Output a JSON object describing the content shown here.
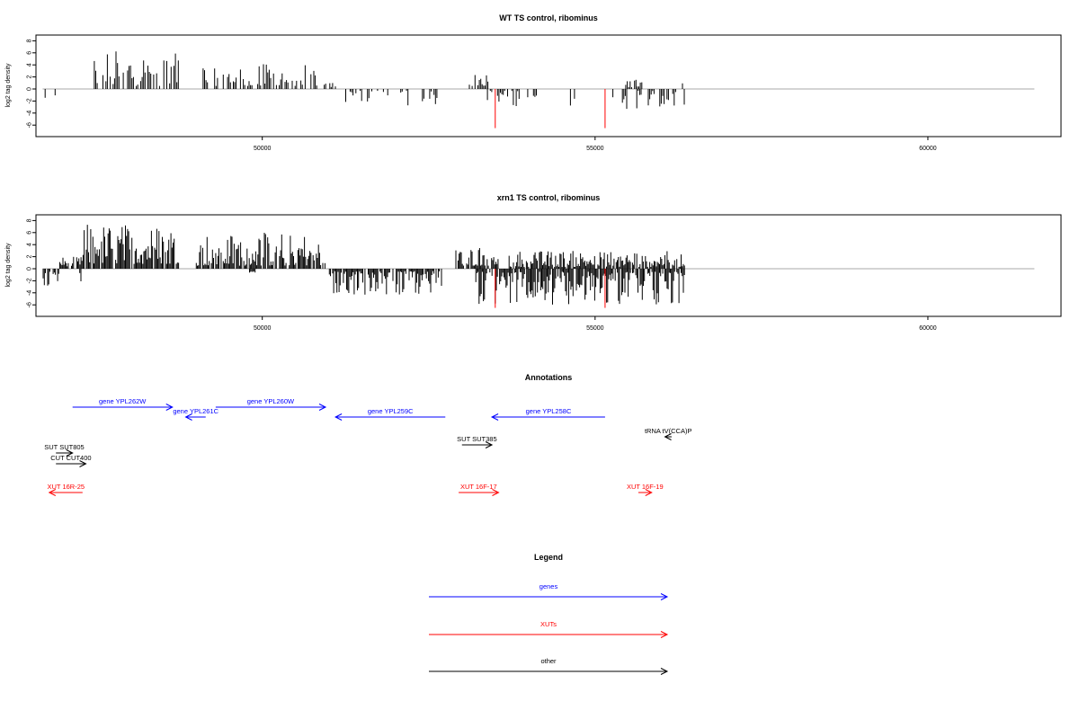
{
  "chart_data": [
    {
      "type": "bar",
      "title": "WT TS control, ribominus",
      "ylabel": "log2 tag density",
      "xlim": [
        46600,
        62000
      ],
      "ylim": [
        -7,
        8
      ],
      "xticks": [
        50000,
        55000,
        60000
      ],
      "yticks": [
        -6,
        -4,
        -2,
        0,
        2,
        4,
        6,
        8
      ],
      "baseline": 0,
      "bar_color": "#000000",
      "highlight_color": "#ff0000",
      "segments": [
        {
          "start": 46700,
          "end": 46750,
          "min": 0,
          "max": 0,
          "neg_min": -2.5,
          "neg_max": -0.5
        },
        {
          "start": 46750,
          "end": 46800,
          "min": 0,
          "max": 0,
          "neg_min": -0.3,
          "neg_max": 0
        },
        {
          "start": 46850,
          "end": 46900,
          "min": 0,
          "max": 0,
          "neg_min": -1.2,
          "neg_max": -0.4
        },
        {
          "start": 47400,
          "end": 48750,
          "min": 0.5,
          "max": 6.5,
          "neg_min": 0,
          "neg_max": 0
        },
        {
          "start": 49100,
          "end": 50850,
          "min": 0.5,
          "max": 4.2,
          "neg_min": 0,
          "neg_max": 0
        },
        {
          "start": 50900,
          "end": 51150,
          "min": 0.3,
          "max": 1.1,
          "neg_min": 0,
          "neg_max": 0
        },
        {
          "start": 51200,
          "end": 52700,
          "min": 0,
          "max": 0,
          "neg_min": -2.8,
          "neg_max": -0.3
        },
        {
          "start": 53100,
          "end": 53400,
          "min": 0.5,
          "max": 2.8,
          "neg_min": 0,
          "neg_max": 0
        },
        {
          "start": 53350,
          "end": 54150,
          "min": 0,
          "max": 0,
          "neg_min": -3.0,
          "neg_max": -0.3
        },
        {
          "start": 54600,
          "end": 54700,
          "min": 0,
          "max": 0,
          "neg_min": -3.4,
          "neg_max": -1.0
        },
        {
          "start": 55150,
          "end": 55300,
          "min": 0,
          "max": 0,
          "neg_min": -2.5,
          "neg_max": -0.5
        },
        {
          "start": 55450,
          "end": 55800,
          "min": 0.3,
          "max": 1.6,
          "neg_min": 0,
          "neg_max": 0
        },
        {
          "start": 55400,
          "end": 56350,
          "min": 0,
          "max": 0,
          "neg_min": -3.5,
          "neg_max": -0.3
        },
        {
          "start": 56300,
          "end": 56350,
          "min": 0.3,
          "max": 1.5,
          "neg_min": 0,
          "neg_max": 0
        }
      ],
      "highlights": [
        {
          "x": 53500,
          "y": -6.5
        },
        {
          "x": 55150,
          "y": -6.5
        }
      ]
    },
    {
      "type": "bar",
      "title": "xrn1 TS control, ribominus",
      "ylabel": "log2 tag density",
      "xlim": [
        46600,
        62000
      ],
      "ylim": [
        -7,
        8
      ],
      "xticks": [
        50000,
        55000,
        60000
      ],
      "yticks": [
        -6,
        -4,
        -2,
        0,
        2,
        4,
        6,
        8
      ],
      "baseline": 0,
      "bar_color": "#000000",
      "highlight_color": "#ff0000",
      "segments": [
        {
          "start": 46700,
          "end": 46950,
          "min": 0,
          "max": 0,
          "neg_min": -3.2,
          "neg_max": -0.5
        },
        {
          "start": 46950,
          "end": 47300,
          "min": 0.4,
          "max": 2.0,
          "neg_min": 0,
          "neg_max": 0
        },
        {
          "start": 47250,
          "end": 47300,
          "min": 0,
          "max": 0,
          "neg_min": -3.3,
          "neg_max": -0.5
        },
        {
          "start": 47300,
          "end": 48750,
          "min": 0.8,
          "max": 7.5,
          "neg_min": 0,
          "neg_max": 0
        },
        {
          "start": 49000,
          "end": 50950,
          "min": 0.5,
          "max": 6.0,
          "neg_min": 0,
          "neg_max": 0
        },
        {
          "start": 49800,
          "end": 49900,
          "min": 0,
          "max": 0,
          "neg_min": -0.8,
          "neg_max": -0.3
        },
        {
          "start": 51000,
          "end": 52700,
          "min": 0,
          "max": 0,
          "neg_min": -4.5,
          "neg_max": -0.4
        },
        {
          "start": 52900,
          "end": 53550,
          "min": 0.5,
          "max": 4.0,
          "neg_min": 0,
          "neg_max": 0
        },
        {
          "start": 53200,
          "end": 56350,
          "min": 0,
          "max": 0,
          "neg_min": -6.0,
          "neg_max": -0.5
        },
        {
          "start": 53700,
          "end": 56350,
          "min": 0.3,
          "max": 3.0,
          "neg_min": 0,
          "neg_max": 0
        }
      ],
      "highlights": [
        {
          "x": 53500,
          "y": -6.5
        },
        {
          "x": 55150,
          "y": -6.5
        }
      ]
    }
  ],
  "annotations": {
    "title": "Annotations",
    "xlim": [
      46600,
      62000
    ],
    "features": [
      {
        "label": "gene YPL262W",
        "start": 47150,
        "end": 48650,
        "strand": "+",
        "row": 0,
        "color": "#0000ff"
      },
      {
        "label": "gene YPL261C",
        "start": 48850,
        "end": 49150,
        "strand": "-",
        "row": 1,
        "color": "#0000ff"
      },
      {
        "label": "gene YPL260W",
        "start": 49300,
        "end": 50950,
        "strand": "+",
        "row": 0,
        "color": "#0000ff"
      },
      {
        "label": "gene YPL259C",
        "start": 51100,
        "end": 52750,
        "strand": "-",
        "row": 1,
        "color": "#0000ff"
      },
      {
        "label": "gene YPL258C",
        "start": 53450,
        "end": 55150,
        "strand": "-",
        "row": 1,
        "color": "#0000ff"
      },
      {
        "label": "tRNA tV(CCA)P",
        "start": 56050,
        "end": 56150,
        "strand": "-",
        "row": 2,
        "color": "#000000"
      },
      {
        "label": "SUT SUT385",
        "start": 53000,
        "end": 53450,
        "strand": "+",
        "row": 3,
        "color": "#000000"
      },
      {
        "label": "SUT SUT805",
        "start": 46900,
        "end": 47150,
        "strand": "+",
        "row": 4,
        "color": "#000000"
      },
      {
        "label": "CUT CUT400",
        "start": 46900,
        "end": 47350,
        "strand": "+",
        "row": 5,
        "color": "#000000"
      },
      {
        "label": "XUT 16R-25",
        "start": 46800,
        "end": 47300,
        "strand": "-",
        "row": 6,
        "color": "#ff0000"
      },
      {
        "label": "XUT 16F-17",
        "start": 52950,
        "end": 53550,
        "strand": "+",
        "row": 6,
        "color": "#ff0000"
      },
      {
        "label": "XUT 16F-19",
        "start": 55650,
        "end": 55850,
        "strand": "+",
        "row": 6,
        "color": "#ff0000"
      }
    ]
  },
  "legend": {
    "title": "Legend",
    "items": [
      {
        "label": "genes",
        "color": "#0000ff"
      },
      {
        "label": "XUTs",
        "color": "#ff0000"
      },
      {
        "label": "other",
        "color": "#000000"
      }
    ]
  }
}
